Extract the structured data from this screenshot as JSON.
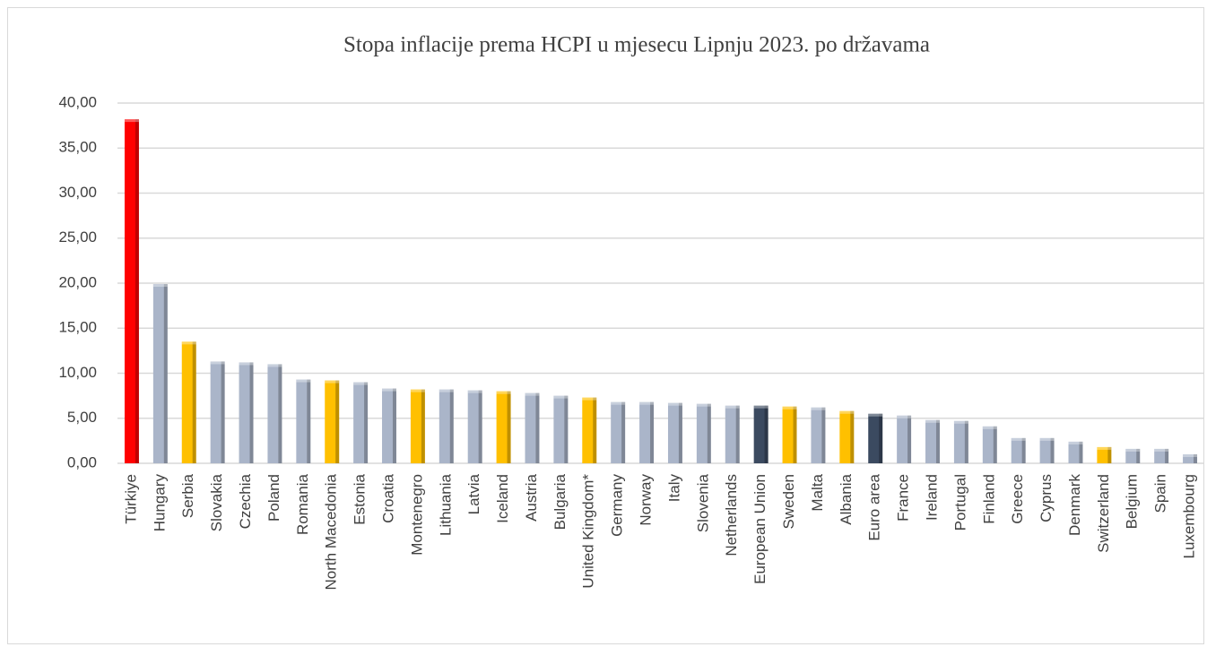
{
  "chart_data": {
    "type": "bar",
    "title": "Stopa inflacije prema HCPI u mjesecu Lipnju 2023. po državama",
    "categories": [
      "Türkiye",
      "Hungary",
      "Serbia",
      "Slovakia",
      "Czechia",
      "Poland",
      "Romania",
      "North Macedonia",
      "Estonia",
      "Croatia",
      "Montenegro",
      "Lithuania",
      "Latvia",
      "Iceland",
      "Austria",
      "Bulgaria",
      "United Kingdom*",
      "Germany",
      "Norway",
      "Italy",
      "Slovenia",
      "Netherlands",
      "European Union",
      "Sweden",
      "Malta",
      "Albania",
      "Euro area",
      "France",
      "Ireland",
      "Portugal",
      "Finland",
      "Greece",
      "Cyprus",
      "Denmark",
      "Switzerland",
      "Belgium",
      "Spain",
      "Luxembourg"
    ],
    "values": [
      38.2,
      19.9,
      13.5,
      11.3,
      11.2,
      11.0,
      9.3,
      9.2,
      9.0,
      8.3,
      8.2,
      8.2,
      8.1,
      8.0,
      7.8,
      7.5,
      7.3,
      6.8,
      6.8,
      6.7,
      6.6,
      6.4,
      6.4,
      6.3,
      6.2,
      5.8,
      5.5,
      5.3,
      4.8,
      4.7,
      4.1,
      2.8,
      2.8,
      2.4,
      1.8,
      1.6,
      1.6,
      1.0
    ],
    "colors": [
      "#ff0000",
      "#aab5c9",
      "#ffc000",
      "#aab5c9",
      "#aab5c9",
      "#aab5c9",
      "#aab5c9",
      "#ffc000",
      "#aab5c9",
      "#aab5c9",
      "#ffc000",
      "#aab5c9",
      "#aab5c9",
      "#ffc000",
      "#aab5c9",
      "#aab5c9",
      "#ffc000",
      "#aab5c9",
      "#aab5c9",
      "#aab5c9",
      "#aab5c9",
      "#aab5c9",
      "#3b4a60",
      "#ffc000",
      "#aab5c9",
      "#ffc000",
      "#3b4a60",
      "#aab5c9",
      "#aab5c9",
      "#aab5c9",
      "#aab5c9",
      "#aab5c9",
      "#aab5c9",
      "#aab5c9",
      "#ffc000",
      "#aab5c9",
      "#aab5c9",
      "#aab5c9"
    ],
    "ylim": [
      0,
      40
    ],
    "yticks": [
      {
        "value": 0,
        "label": "0,00"
      },
      {
        "value": 5,
        "label": "5,00"
      },
      {
        "value": 10,
        "label": "10,00"
      },
      {
        "value": 15,
        "label": "15,00"
      },
      {
        "value": 20,
        "label": "20,00"
      },
      {
        "value": 25,
        "label": "25,00"
      },
      {
        "value": 30,
        "label": "30,00"
      },
      {
        "value": 35,
        "label": "35,00"
      },
      {
        "value": 40,
        "label": "40,00"
      }
    ],
    "grid": true
  }
}
